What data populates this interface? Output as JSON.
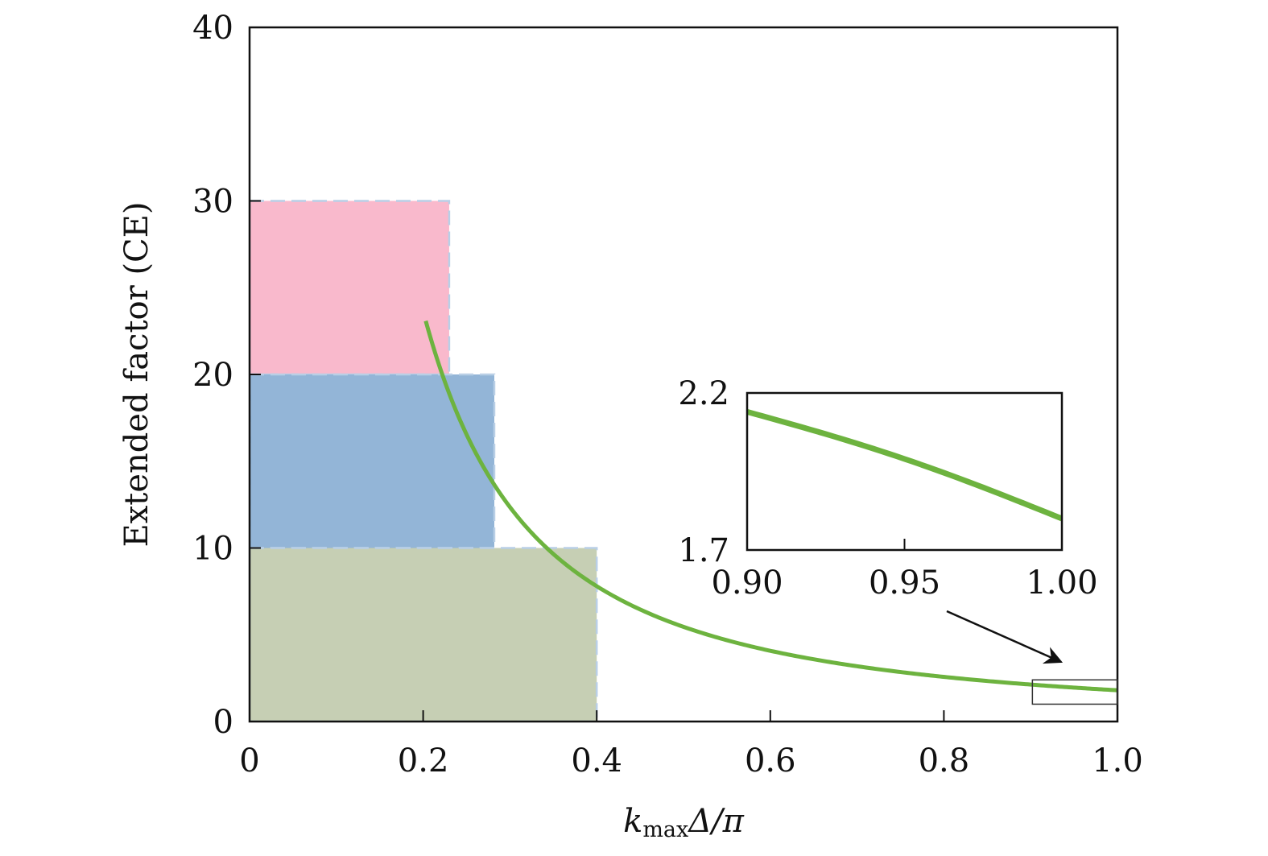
{
  "chart_data": {
    "type": "line",
    "xlabel": {
      "k": "k",
      "sub": "max",
      "rest": "Δ/π"
    },
    "ylabel": "Extended factor (CE)",
    "xlim": [
      0,
      1.0
    ],
    "ylim": [
      0,
      40
    ],
    "x_ticks": [
      "0",
      "0.2",
      "0.4",
      "0.6",
      "0.8",
      "1.0"
    ],
    "x_tick_values": [
      0,
      0.2,
      0.4,
      0.6,
      0.8,
      1.0
    ],
    "y_ticks": [
      "0",
      "10",
      "20",
      "30",
      "40"
    ],
    "y_tick_values": [
      0,
      10,
      20,
      30,
      40
    ],
    "grid": false,
    "series": [
      {
        "color": "#6db33f",
        "function": "CE = 1.8 / x^1.6",
        "x_range": [
          0.203,
          1.0
        ]
      }
    ],
    "regions": [
      {
        "x": [
          0,
          0.23
        ],
        "y": [
          20,
          30
        ],
        "color": "#f9b9cc"
      },
      {
        "x": [
          0,
          0.282
        ],
        "y": [
          10,
          20
        ],
        "color": "#93b5d7"
      },
      {
        "x": [
          0,
          0.4
        ],
        "y": [
          0,
          10
        ],
        "color": "#c6cfb4"
      }
    ],
    "zoom_box": {
      "x": [
        0.902,
        1.0
      ],
      "y": [
        1.0,
        2.4
      ]
    },
    "inset": {
      "xlim": [
        0.9,
        1.0
      ],
      "ylim": [
        1.7,
        2.2
      ],
      "x_ticks": [
        "0.90",
        "0.95",
        "1.00"
      ],
      "x_tick_values": [
        0.9,
        0.95,
        1.0
      ],
      "y_ticks": [
        "1.7",
        "2.2"
      ],
      "y_tick_values": [
        1.7,
        2.2
      ],
      "line": {
        "x": [
          0.9,
          1.0
        ],
        "y": [
          2.14,
          1.8
        ]
      }
    }
  }
}
